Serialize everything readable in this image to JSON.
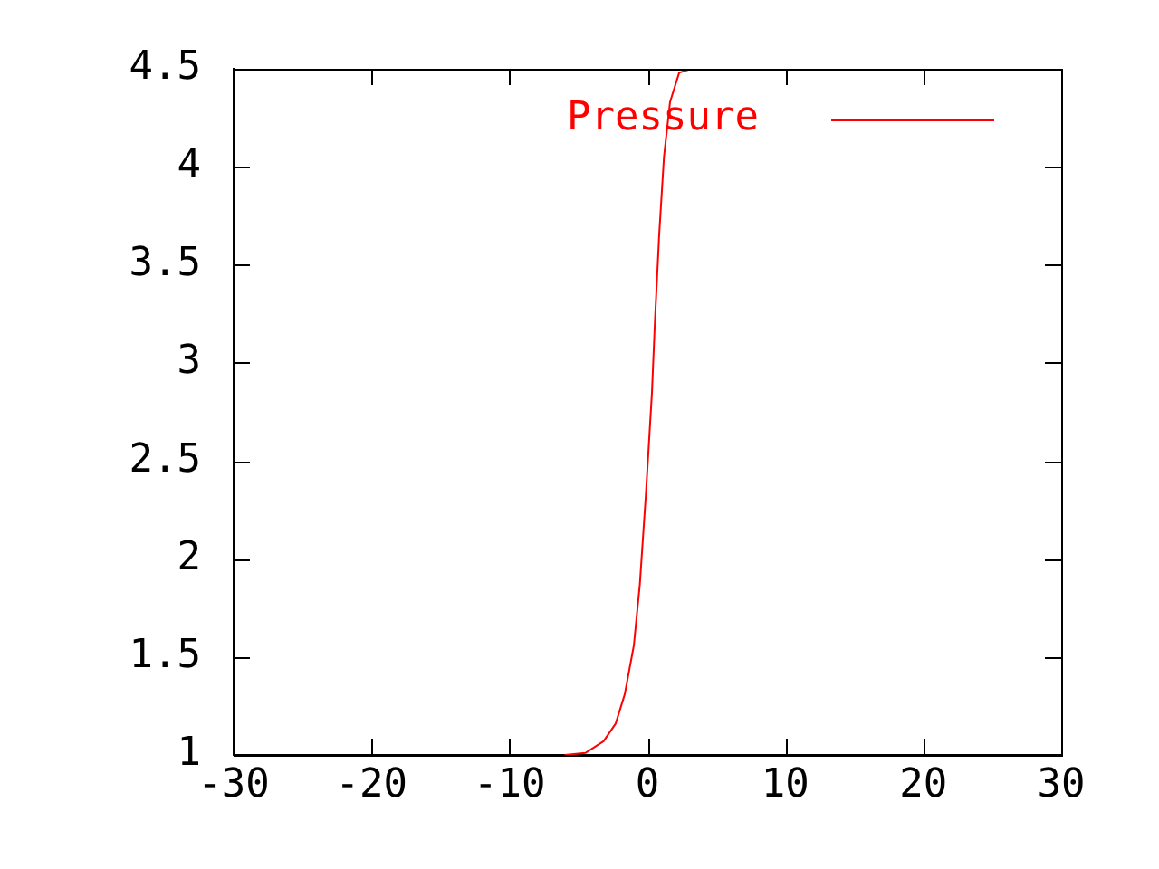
{
  "chart_data": {
    "type": "line",
    "x": [
      -6.0,
      -4.5,
      -3.18,
      -2.3,
      -1.64,
      -0.98,
      -0.55,
      -0.11,
      0.33,
      0.55,
      0.85,
      1.2,
      1.64,
      2.3,
      3.17
    ],
    "series": [
      {
        "name": "Pressure",
        "color": "#ff0000",
        "values": [
          1.0,
          1.01,
          1.07,
          1.16,
          1.31,
          1.56,
          1.87,
          2.33,
          2.85,
          3.22,
          3.65,
          4.05,
          4.33,
          4.48,
          4.5
        ]
      }
    ],
    "xlim": [
      -30,
      30
    ],
    "xticks": [
      -30,
      -20,
      -10,
      0,
      10,
      20,
      30
    ],
    "ylim": [
      1,
      4.5
    ],
    "yticks": [
      1,
      1.5,
      2,
      2.5,
      3,
      3.5,
      4,
      4.5
    ],
    "grid": false,
    "legend": "top right",
    "marker": "none"
  }
}
